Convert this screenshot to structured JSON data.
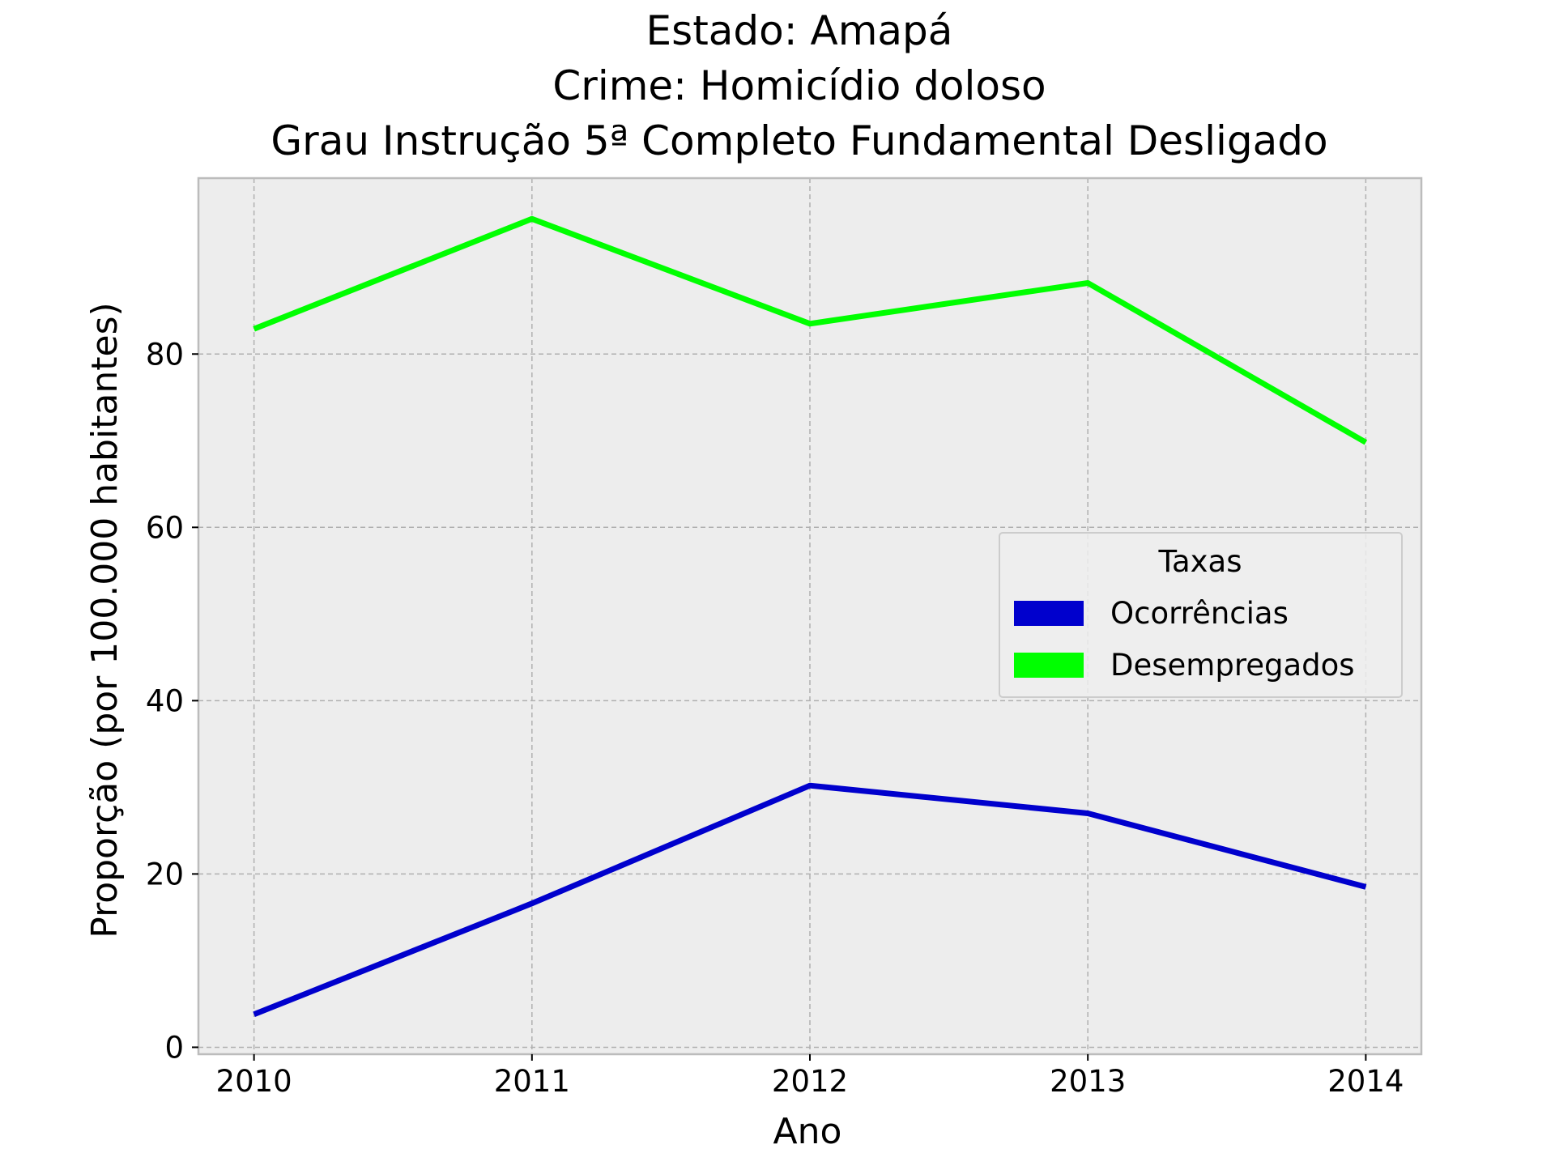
{
  "chart_data": {
    "type": "line",
    "title_lines": [
      "Estado: Amapá",
      "Crime: Homicídio doloso",
      "Grau Instrução  5ª Completo Fundamental   Desligado"
    ],
    "xlabel": "Ano",
    "ylabel": "Proporção (por 100.000 habitantes)",
    "x": [
      2010,
      2011,
      2012,
      2013,
      2014
    ],
    "x_tick_labels": [
      "2010",
      "2011",
      "2012",
      "2013",
      "2014"
    ],
    "y_ticks": [
      0,
      20,
      40,
      60,
      80
    ],
    "y_tick_labels": [
      "0",
      "20",
      "40",
      "60",
      "80"
    ],
    "xlim": [
      2009.8,
      2014.2
    ],
    "ylim": [
      -0.8,
      100.3
    ],
    "grid": true,
    "legend": {
      "title": "Taxas",
      "placement": "center-right"
    },
    "series": [
      {
        "name": "Ocorrências",
        "color": "#0000cd",
        "values": [
          3.8,
          16.6,
          30.2,
          27.0,
          18.5
        ]
      },
      {
        "name": "Desempregados",
        "color": "#00ff00",
        "values": [
          82.9,
          95.6,
          83.5,
          88.2,
          69.8
        ]
      }
    ]
  },
  "style": {
    "plot_background": "#ededed",
    "grid_color": "#b0b0b0",
    "spine_color": "#bcbcbc"
  }
}
